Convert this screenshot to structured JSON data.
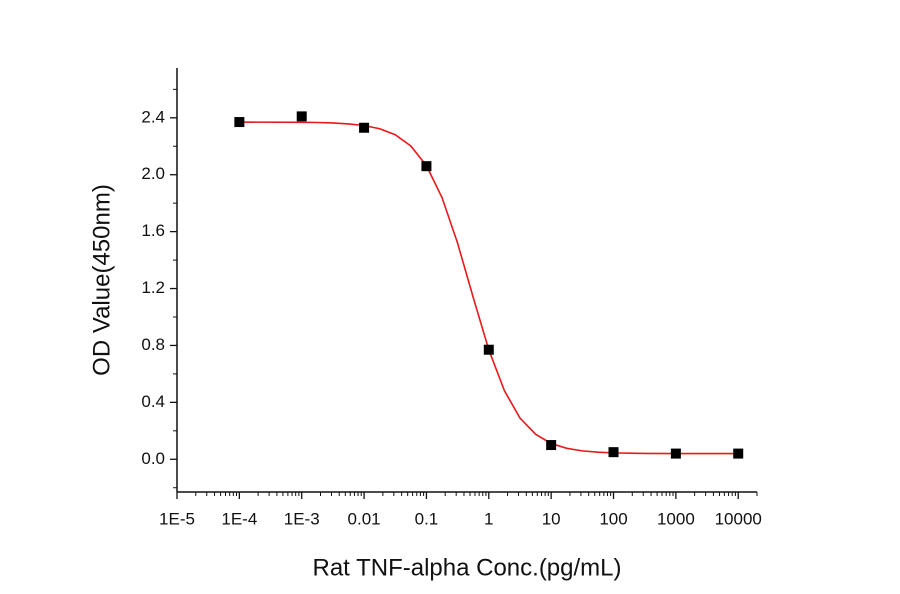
{
  "chart_data": {
    "type": "scatter",
    "x_label": "Rat TNF-alpha Conc.(pg/mL)",
    "y_label": "OD Value(450nm)",
    "x": [
      0.0001,
      0.001,
      0.01,
      0.1,
      1,
      10,
      100,
      1000,
      10000
    ],
    "values": [
      2.37,
      2.41,
      2.33,
      2.06,
      0.77,
      0.1,
      0.05,
      0.04,
      0.04
    ],
    "color": "#000000",
    "fit_curve": {
      "color": "#e8191b",
      "x": [
        0.0001,
        0.001,
        0.00178,
        0.00316,
        0.00562,
        0.01,
        0.0178,
        0.0316,
        0.0562,
        0.1,
        0.178,
        0.316,
        0.562,
        1,
        1.78,
        3.16,
        5.62,
        10,
        17.8,
        31.6,
        56.2,
        100,
        316,
        1000,
        10000
      ],
      "values": [
        2.37,
        2.368,
        2.367,
        2.364,
        2.357,
        2.346,
        2.323,
        2.281,
        2.202,
        2.064,
        1.839,
        1.519,
        1.138,
        0.77,
        0.482,
        0.29,
        0.176,
        0.111,
        0.077,
        0.059,
        0.05,
        0.045,
        0.041,
        0.04,
        0.04
      ]
    },
    "xscale": "log",
    "xlim": [
      1e-05,
      20000
    ],
    "xticks": [
      {
        "value": 1e-05,
        "label": "1E-5"
      },
      {
        "value": 0.0001,
        "label": "1E-4"
      },
      {
        "value": 0.001,
        "label": "1E-3"
      },
      0.01,
      0.1,
      1,
      10,
      100,
      1000,
      10000
    ],
    "ylim": [
      -0.23,
      2.75
    ],
    "yticks": [
      {
        "value": 0,
        "label": "0.0"
      },
      0.4,
      0.8,
      1.2,
      1.6,
      {
        "value": 2,
        "label": "2.0"
      },
      2.4
    ],
    "minor_ticks": true
  }
}
